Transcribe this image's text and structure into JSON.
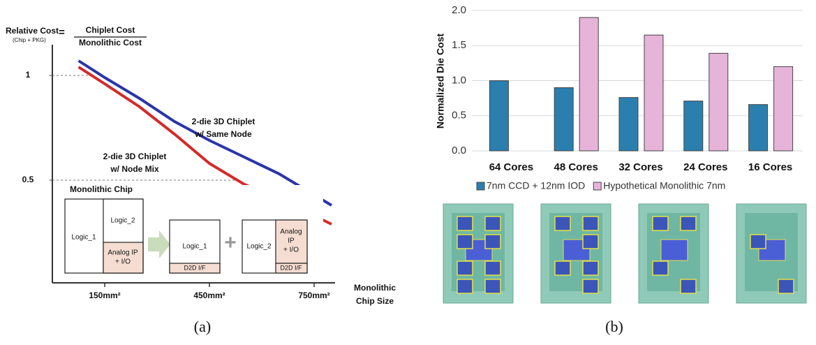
{
  "chart_data": [
    {
      "type": "line",
      "title": "Relative Cost",
      "title_note": "(Chip + PKG)",
      "equals": "=",
      "numerator": "Chiplet Cost",
      "denominator": "Monolithic Cost",
      "x_label": [
        "Monolithic",
        "Chip Size"
      ],
      "x": [
        75,
        150,
        250,
        350,
        450,
        550,
        650,
        800
      ],
      "xlim": [
        0,
        810
      ],
      "xticks": [
        {
          "value": 150,
          "label": "150mm²"
        },
        {
          "value": 450,
          "label": "450mm²"
        },
        {
          "value": 750,
          "label": "750mm²"
        }
      ],
      "ylim": [
        0,
        1.12
      ],
      "yticks": [
        {
          "value": 1,
          "label": "1"
        },
        {
          "value": 0.5,
          "label": "0.5"
        }
      ],
      "series": [
        {
          "color": "#2a35a8",
          "values": [
            1.07,
            0.99,
            0.89,
            0.78,
            0.69,
            0.61,
            0.53,
            0.38
          ],
          "annotation": [
            "2-die 3D Chiplet",
            "w/ Same Node"
          ]
        },
        {
          "color": "#d42a2a",
          "values": [
            1.04,
            0.96,
            0.85,
            0.72,
            0.58,
            0.48,
            0.41,
            0.29
          ],
          "annotation": [
            "2-die 3D Chiplet",
            "w/ Node Mix"
          ]
        }
      ],
      "inset": {
        "title": "Monolithic Chip",
        "logic_1": "Logic_1",
        "logic_2": "Logic_2",
        "analog": [
          "Analog IP",
          "+ I/O"
        ],
        "die1": "Logic_1",
        "d2d": "D2D I/F",
        "plus": "+",
        "die2": "Logic_2",
        "analog2": [
          "Analog",
          "IP",
          "+ I/O"
        ],
        "d2d2": "D2D I/F"
      },
      "caption": "(a)"
    },
    {
      "type": "bar",
      "y_label": "Normalized Die Cost",
      "categories": [
        "64 Cores",
        "48 Cores",
        "32 Cores",
        "24 Cores",
        "16 Cores"
      ],
      "series": [
        {
          "name": "7nm CCD + 12nm IOD",
          "color": "#2b7fae",
          "values": [
            1.0,
            0.9,
            0.76,
            0.71,
            0.66
          ]
        },
        {
          "name": "Hypothetical Monolithic 7nm",
          "color": "#e6b3d9",
          "values": [
            null,
            1.9,
            1.65,
            1.39,
            1.2
          ]
        }
      ],
      "ylim": [
        0,
        2.0
      ],
      "yticks": [
        {
          "value": 0,
          "label": "0.0"
        },
        0.5,
        {
          "value": 1,
          "label": "1.0"
        },
        1.5,
        {
          "value": 2,
          "label": "2.0"
        }
      ],
      "grid": true,
      "caption": "(b)"
    }
  ]
}
